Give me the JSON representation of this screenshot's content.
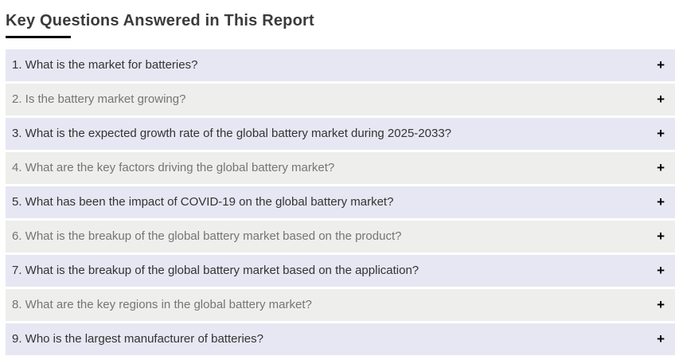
{
  "page": {
    "title": "Key Questions Answered in This Report"
  },
  "faq": {
    "expand_icon": "+",
    "items": [
      {
        "label": "1. What is the market for batteries?"
      },
      {
        "label": "2. Is the battery market growing?"
      },
      {
        "label": "3. What is the expected growth rate of the global battery market during 2025-2033?"
      },
      {
        "label": "4. What are the key factors driving the global battery market?"
      },
      {
        "label": "5. What has been the impact of COVID-19 on the global battery market?"
      },
      {
        "label": "6. What is the breakup of the global battery market based on the product?"
      },
      {
        "label": "7. What is the breakup of the global battery market based on the application?"
      },
      {
        "label": "8. What are the key regions in the global battery market?"
      },
      {
        "label": "9. Who is the largest manufacturer of batteries?"
      }
    ]
  },
  "colors": {
    "row_odd_bg": "#e6e7f3",
    "row_even_bg": "#eeeeec",
    "row_odd_text": "#333333",
    "row_even_text": "#757575",
    "heading_text": "#3b3b3b",
    "title_underline": "#000000",
    "expand_icon": "#000000",
    "page_bg": "#ffffff"
  }
}
